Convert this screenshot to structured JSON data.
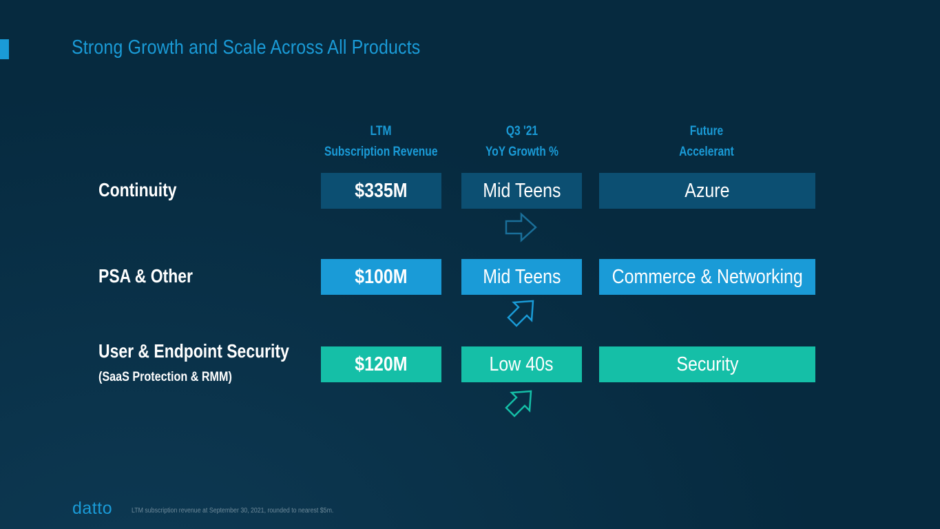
{
  "title": "Strong Growth and Scale Across All Products",
  "columns": {
    "revenue": {
      "line1": "LTM",
      "line2": "Subscription Revenue"
    },
    "growth": {
      "line1": "Q3 '21",
      "line2": "YoY Growth %"
    },
    "accelerant": {
      "line1": "Future",
      "line2": "Accelerant"
    }
  },
  "rows": [
    {
      "label": "Continuity",
      "sublabel": "",
      "revenue": "$335M",
      "growth": "Mid Teens",
      "accelerant": "Azure",
      "color": "#0c4f72"
    },
    {
      "label": "PSA & Other",
      "sublabel": "",
      "revenue": "$100M",
      "growth": "Mid Teens",
      "accelerant": "Commerce & Networking",
      "color": "#1a9bd7"
    },
    {
      "label": "User & Endpoint Security",
      "sublabel": "(SaaS Protection & RMM)",
      "revenue": "$120M",
      "growth": "Low 40s",
      "accelerant": "Security",
      "color": "#15bfa7"
    }
  ],
  "arrows": [
    {
      "icon": "arrow-right-icon",
      "color": "#1a6f99"
    },
    {
      "icon": "arrow-up-right-icon",
      "color": "#1a9bd7"
    },
    {
      "icon": "arrow-up-right-icon",
      "color": "#15bfa7"
    }
  ],
  "footer": {
    "logo": "datto",
    "note": "LTM subscription revenue at September 30, 2021, rounded to nearest $5m."
  },
  "colors": {
    "background": "#062a3f",
    "accent": "#1a9bd7"
  }
}
